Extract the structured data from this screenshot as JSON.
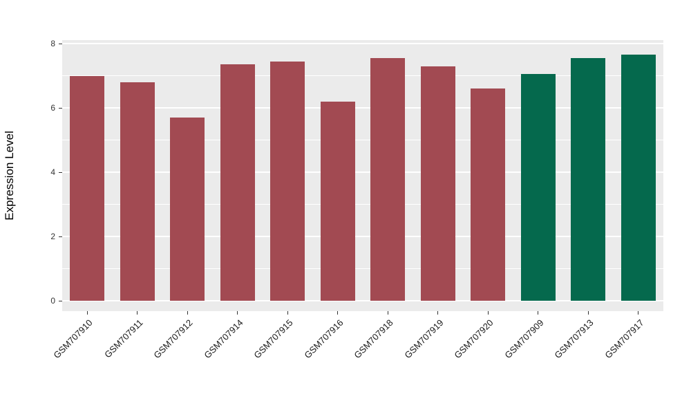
{
  "chart_data": {
    "type": "bar",
    "title": "",
    "xlabel": "",
    "ylabel": "Expression Level",
    "ylim": [
      0,
      8
    ],
    "yticks": [
      0,
      2,
      4,
      6,
      8
    ],
    "yticks_minor": [
      1,
      3,
      5,
      7
    ],
    "legend": "none",
    "grid": "white major and minor gridlines on gray panel",
    "categories": [
      "GSM707910",
      "GSM707911",
      "GSM707912",
      "GSM707914",
      "GSM707915",
      "GSM707916",
      "GSM707918",
      "GSM707919",
      "GSM707920",
      "GSM707909",
      "GSM707913",
      "GSM707917"
    ],
    "values": [
      7.0,
      6.8,
      5.7,
      7.35,
      7.45,
      6.2,
      7.55,
      7.3,
      6.6,
      7.05,
      7.55,
      7.65
    ],
    "bar_colors": [
      "#A24A52",
      "#A24A52",
      "#A24A52",
      "#A24A52",
      "#A24A52",
      "#A24A52",
      "#A24A52",
      "#A24A52",
      "#A24A52",
      "#05694D",
      "#05694D",
      "#05694D"
    ],
    "palette": {
      "red_group": "#A24A52",
      "green_group": "#05694D"
    }
  },
  "panel": {
    "background": "#EBEBEB",
    "grid_color": "#FFFFFF"
  }
}
